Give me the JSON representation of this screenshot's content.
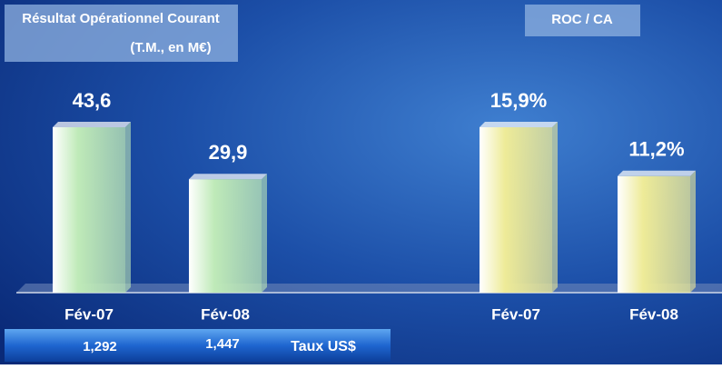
{
  "chart_data": [
    {
      "type": "bar",
      "title": "Résultat Opérationnel Courant",
      "subtitle": "(T.M., en M€)",
      "categories": [
        "Fév-07",
        "Fév-08"
      ],
      "values": [
        43.6,
        29.9
      ],
      "value_labels": [
        "43,6",
        "29,9"
      ],
      "color": "#bfeab8"
    },
    {
      "type": "bar",
      "title": "ROC / CA",
      "categories": [
        "Fév-07",
        "Fév-08"
      ],
      "values": [
        15.9,
        11.2
      ],
      "value_labels": [
        "15,9%",
        "11,2%"
      ],
      "color": "#eeeb98"
    }
  ],
  "exchange": {
    "label": "Taux US$",
    "rates": [
      "1,292",
      "1,447"
    ]
  }
}
